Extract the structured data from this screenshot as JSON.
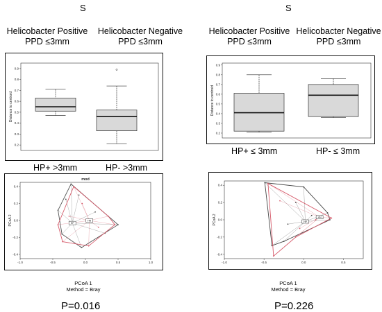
{
  "figure": {
    "left": {
      "letter": "S",
      "header_pos": "Helicobacter Positive",
      "header_pos_sub": "PPD ≤3mm",
      "header_neg": "Helicobacter Negative",
      "header_neg_sub": "PPD ≤3mm",
      "category_1": "HP+ >3mm",
      "category_2": "HP- >3mm",
      "pcoa_title": "mod",
      "pcoa_xlabel": "PCoA 1",
      "pcoa_method": "Method = Bray",
      "pcoa_ylabel": "PCoA 2",
      "pvalue": "P=0.016"
    },
    "right": {
      "letter": "S",
      "header_pos": "Helicobacter Positive",
      "header_pos_sub": "PPD ≤3mm",
      "header_neg": "Helicobacter Negative",
      "header_neg_sub": "PPD ≤3mm",
      "category_1": "HP+ ≤ 3mm",
      "category_2": "HP- ≤ 3mm",
      "pcoa_xlabel": "PCoA 1",
      "pcoa_method": "Method = Bray",
      "pcoa_ylabel": "PCoA 2",
      "pvalue": "P=0.226"
    }
  },
  "chart_data": [
    {
      "type": "box",
      "panel": "left",
      "ylabel": "Distance to centroid",
      "ylim": [
        0.15,
        0.95
      ],
      "yticks": [
        0.2,
        0.3,
        0.4,
        0.5,
        0.6,
        0.7,
        0.8,
        0.9
      ],
      "categories": [
        "HP+ >3mm",
        "HP- >3mm"
      ],
      "boxes": [
        {
          "min": 0.47,
          "q1": 0.51,
          "median": 0.55,
          "q3": 0.63,
          "max": 0.71,
          "outliers": []
        },
        {
          "min": 0.21,
          "q1": 0.33,
          "median": 0.46,
          "q3": 0.52,
          "max": 0.74,
          "outliers": [
            0.89
          ]
        }
      ]
    },
    {
      "type": "box",
      "panel": "right",
      "ylabel": "Distance to centroid",
      "ylim": [
        0.15,
        0.92
      ],
      "yticks": [
        0.2,
        0.3,
        0.4,
        0.5,
        0.6,
        0.7,
        0.8,
        0.9
      ],
      "categories": [
        "HP+ ≤ 3mm",
        "HP- ≤ 3mm"
      ],
      "boxes": [
        {
          "min": 0.21,
          "q1": 0.22,
          "median": 0.41,
          "q3": 0.61,
          "max": 0.8,
          "outliers": []
        },
        {
          "min": 0.36,
          "q1": 0.37,
          "median": 0.59,
          "q3": 0.7,
          "max": 0.76,
          "outliers": []
        }
      ]
    },
    {
      "type": "scatter",
      "panel": "left",
      "title": "mod",
      "xlabel": "PCoA 1",
      "ylabel": "PCoA 2",
      "xlim": [
        -1.0,
        1.0
      ],
      "ylim": [
        -0.45,
        0.45
      ],
      "xticks": [
        -1.0,
        -0.5,
        0.0,
        0.5,
        1.0
      ],
      "yticks": [
        -0.4,
        -0.2,
        0.0,
        0.2,
        0.4
      ],
      "centroids": [
        {
          "label": "HP",
          "x": -0.2,
          "y": -0.03
        },
        {
          "label": "HN",
          "x": 0.06,
          "y": 0.0
        }
      ],
      "series": [
        {
          "color": "#555555",
          "hull": [
            [
              -0.22,
              0.43
            ],
            [
              0.5,
              -0.05
            ],
            [
              -0.06,
              -0.32
            ],
            [
              -0.36,
              -0.16
            ],
            [
              -0.42,
              0.12
            ]
          ],
          "points": [
            [
              -0.22,
              0.43
            ],
            [
              0.5,
              -0.05
            ],
            [
              -0.06,
              -0.32
            ],
            [
              -0.36,
              -0.16
            ],
            [
              -0.42,
              0.12
            ],
            [
              -0.1,
              0.3
            ],
            [
              0.15,
              0.1
            ],
            [
              0.3,
              -0.15
            ],
            [
              -0.3,
              0.25
            ]
          ]
        },
        {
          "color": "#d65a6a",
          "hull": [
            [
              -0.18,
              0.4
            ],
            [
              0.35,
              0.05
            ],
            [
              0.45,
              -0.05
            ],
            [
              0.05,
              -0.3
            ],
            [
              -0.35,
              -0.25
            ],
            [
              -0.42,
              -0.05
            ]
          ],
          "points": [
            [
              -0.18,
              0.4
            ],
            [
              0.35,
              0.05
            ],
            [
              0.45,
              -0.05
            ],
            [
              0.05,
              -0.3
            ],
            [
              -0.35,
              -0.25
            ],
            [
              -0.42,
              -0.05
            ],
            [
              -0.05,
              0.2
            ],
            [
              0.2,
              -0.08
            ],
            [
              -0.25,
              0.05
            ]
          ]
        }
      ]
    },
    {
      "type": "scatter",
      "panel": "right",
      "xlabel": "PCoA 1",
      "ylabel": "PCoA 2",
      "xlim": [
        -1.0,
        0.75
      ],
      "ylim": [
        -0.45,
        0.45
      ],
      "xticks": [
        -1.0,
        -0.5,
        0.0,
        0.5
      ],
      "yticks": [
        -0.4,
        -0.2,
        0.0,
        0.2,
        0.4
      ],
      "centroids": [
        {
          "label": "HP",
          "x": 0.02,
          "y": -0.02
        },
        {
          "label": "HN",
          "x": 0.2,
          "y": 0.03
        }
      ],
      "series": [
        {
          "color": "#444444",
          "hull": [
            [
              -0.49,
              0.43
            ],
            [
              0.0,
              0.38
            ],
            [
              0.3,
              0.08
            ],
            [
              0.33,
              0.0
            ],
            [
              -0.25,
              -0.25
            ],
            [
              -0.4,
              -0.3
            ]
          ],
          "points": [
            [
              -0.49,
              0.43
            ],
            [
              0.0,
              0.38
            ],
            [
              0.3,
              0.08
            ],
            [
              0.33,
              0.0
            ],
            [
              -0.25,
              -0.25
            ],
            [
              -0.4,
              -0.3
            ],
            [
              -0.1,
              0.2
            ],
            [
              0.1,
              0.05
            ],
            [
              -0.2,
              -0.05
            ]
          ]
        },
        {
          "color": "#d65a6a",
          "hull": [
            [
              -0.45,
              0.42
            ],
            [
              0.35,
              0.02
            ],
            [
              -0.1,
              -0.2
            ],
            [
              -0.38,
              -0.42
            ]
          ],
          "points": [
            [
              -0.45,
              0.42
            ],
            [
              0.35,
              0.02
            ],
            [
              -0.1,
              -0.2
            ],
            [
              -0.38,
              -0.42
            ],
            [
              -0.3,
              0.22
            ],
            [
              0.15,
              0.0
            ],
            [
              -0.05,
              -0.1
            ]
          ]
        }
      ]
    }
  ]
}
